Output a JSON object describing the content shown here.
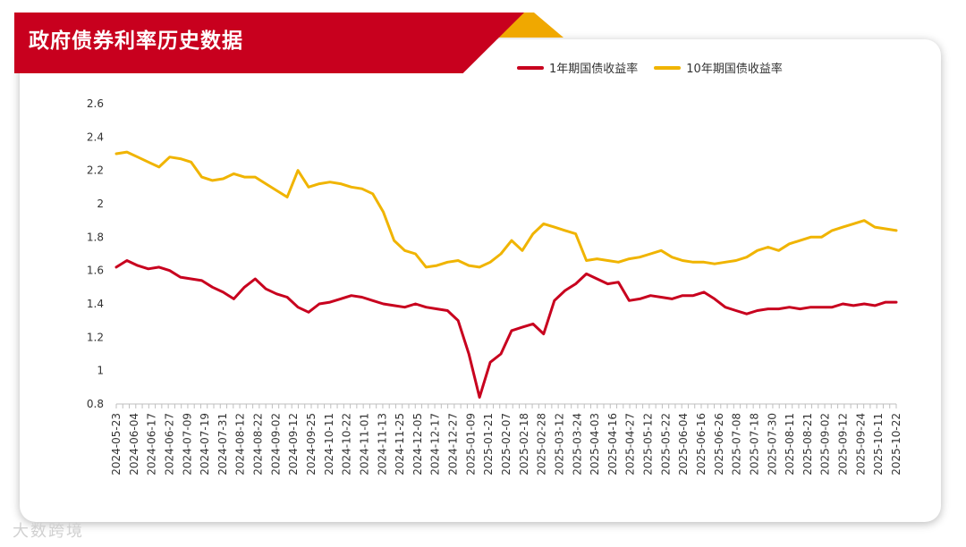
{
  "header": {
    "title": "政府债券利率历史数据"
  },
  "colors": {
    "one_year": "#c8001e",
    "ten_year": "#f0b400",
    "banner": "#c8001e",
    "accent_gold": "#f0a800"
  },
  "watermark": "大数跨境",
  "chart_data": {
    "type": "line",
    "title": "政府债券利率历史数据",
    "ylim": [
      0.8,
      2.6
    ],
    "yticks": [
      "0.8",
      "1",
      "1.2",
      "1.4",
      "1.6",
      "1.8",
      "2",
      "2.2",
      "2.4",
      "2.6"
    ],
    "xtick_labels": [
      "2024-05-23",
      "2024-06-04",
      "2024-06-17",
      "2024-06-27",
      "2024-07-09",
      "2024-07-19",
      "2024-07-31",
      "2024-08-12",
      "2024-08-22",
      "2024-09-02",
      "2024-09-12",
      "2024-09-25",
      "2024-10-11",
      "2024-10-22",
      "2024-11-01",
      "2024-11-13",
      "2024-11-25",
      "2024-12-05",
      "2024-12-17",
      "2024-12-27",
      "2025-01-09",
      "2025-01-21",
      "2025-02-07",
      "2025-02-18",
      "2025-02-28",
      "2025-03-12",
      "2025-03-24",
      "2025-04-03",
      "2025-04-16",
      "2025-04-27",
      "2025-05-12",
      "2025-05-22",
      "2025-06-04",
      "2025-06-16",
      "2025-06-26",
      "2025-07-08",
      "2025-07-18",
      "2025-07-30",
      "2025-08-11",
      "2025-08-21",
      "2025-09-02",
      "2025-09-12",
      "2025-09-24",
      "2025-10-11",
      "2025-10-22"
    ],
    "legend_position": "top-right",
    "series": [
      {
        "name": "1年期国债收益率",
        "color": "#c8001e",
        "values": [
          1.62,
          1.66,
          1.63,
          1.61,
          1.62,
          1.6,
          1.56,
          1.55,
          1.54,
          1.5,
          1.47,
          1.43,
          1.5,
          1.55,
          1.49,
          1.46,
          1.44,
          1.38,
          1.35,
          1.4,
          1.41,
          1.43,
          1.45,
          1.44,
          1.42,
          1.4,
          1.39,
          1.38,
          1.4,
          1.38,
          1.37,
          1.36,
          1.3,
          1.1,
          0.84,
          1.05,
          1.1,
          1.24,
          1.26,
          1.28,
          1.22,
          1.42,
          1.48,
          1.52,
          1.58,
          1.55,
          1.52,
          1.53,
          1.42,
          1.43,
          1.45,
          1.44,
          1.43,
          1.45,
          1.45,
          1.47,
          1.43,
          1.38,
          1.36,
          1.34,
          1.36,
          1.37,
          1.37,
          1.38,
          1.37,
          1.38,
          1.38,
          1.38,
          1.4,
          1.39,
          1.4,
          1.39,
          1.41,
          1.41
        ]
      },
      {
        "name": "10年期国债收益率",
        "color": "#f0b400",
        "values": [
          2.3,
          2.31,
          2.28,
          2.25,
          2.22,
          2.28,
          2.27,
          2.25,
          2.16,
          2.14,
          2.15,
          2.18,
          2.16,
          2.16,
          2.12,
          2.08,
          2.04,
          2.2,
          2.1,
          2.12,
          2.13,
          2.12,
          2.1,
          2.09,
          2.06,
          1.95,
          1.78,
          1.72,
          1.7,
          1.62,
          1.63,
          1.65,
          1.66,
          1.63,
          1.62,
          1.65,
          1.7,
          1.78,
          1.72,
          1.82,
          1.88,
          1.86,
          1.84,
          1.82,
          1.66,
          1.67,
          1.66,
          1.65,
          1.67,
          1.68,
          1.7,
          1.72,
          1.68,
          1.66,
          1.65,
          1.65,
          1.64,
          1.65,
          1.66,
          1.68,
          1.72,
          1.74,
          1.72,
          1.76,
          1.78,
          1.8,
          1.8,
          1.84,
          1.86,
          1.88,
          1.9,
          1.86,
          1.85,
          1.84
        ]
      }
    ]
  }
}
